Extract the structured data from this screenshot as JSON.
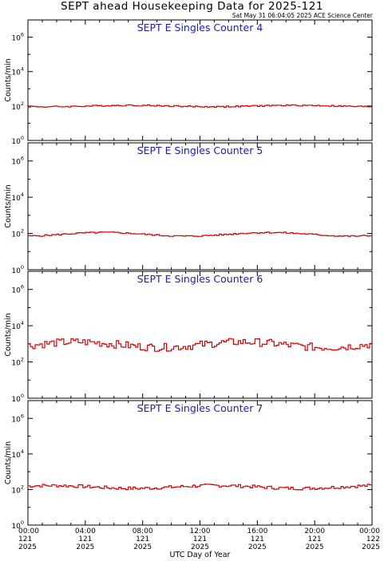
{
  "header": {
    "title": "SEPT ahead Housekeeping Data for 2025-121",
    "timestamp": "Sat May 31 06:04:05 2025 ACE Science Center"
  },
  "colors": {
    "panel_title": "#1c1cb4",
    "data_line": "#d40000",
    "axes": "#000000"
  },
  "chart_data": [
    {
      "type": "line",
      "title": "SEPT E Singles Counter 4",
      "ylabel": "Counts/min",
      "yscale": "log",
      "ylim": [
        1,
        10000000
      ],
      "xlim": [
        0,
        24
      ],
      "xunit": "hours (UTC), 2025-121",
      "series": [
        {
          "x": [
            0,
            24
          ],
          "base": 100,
          "amplitude_log": 0.04,
          "noise_log": 0.04,
          "seed": 4
        }
      ]
    },
    {
      "type": "line",
      "title": "SEPT E Singles Counter 5",
      "ylabel": "Counts/min",
      "yscale": "log",
      "ylim": [
        1,
        10000000
      ],
      "xlim": [
        0,
        24
      ],
      "xunit": "hours (UTC), 2025-121",
      "series": [
        {
          "x": [
            0,
            24
          ],
          "base": 90,
          "amplitude_log": 0.1,
          "noise_log": 0.04,
          "seed": 5
        }
      ]
    },
    {
      "type": "line",
      "title": "SEPT E Singles Counter 6",
      "ylabel": "Counts/min",
      "yscale": "log",
      "ylim": [
        1,
        10000000
      ],
      "xlim": [
        0,
        24
      ],
      "xunit": "hours (UTC), 2025-121",
      "series": [
        {
          "x": [
            0,
            24
          ],
          "base": 900,
          "amplitude_log": 0.15,
          "noise_log": 0.22,
          "seed": 6
        }
      ]
    },
    {
      "type": "line",
      "title": "SEPT E Singles Counter 7",
      "ylabel": "Counts/min",
      "yscale": "log",
      "ylim": [
        1,
        10000000
      ],
      "xlim": [
        0,
        24
      ],
      "xunit": "hours (UTC), 2025-121",
      "series": [
        {
          "x": [
            0,
            24
          ],
          "base": 140,
          "amplitude_log": 0.08,
          "noise_log": 0.09,
          "seed": 7
        }
      ]
    }
  ],
  "axes": {
    "y_ticks": [
      {
        "base": "10",
        "exp": "0"
      },
      {
        "base": "10",
        "exp": "2"
      },
      {
        "base": "10",
        "exp": "4"
      },
      {
        "base": "10",
        "exp": "6"
      }
    ],
    "x_ticks": [
      {
        "time": "00:00",
        "day": "121",
        "year": "2025"
      },
      {
        "time": "04:00",
        "day": "121",
        "year": "2025"
      },
      {
        "time": "08:00",
        "day": "121",
        "year": "2025"
      },
      {
        "time": "12:00",
        "day": "121",
        "year": "2025"
      },
      {
        "time": "16:00",
        "day": "121",
        "year": "2025"
      },
      {
        "time": "20:00",
        "day": "121",
        "year": "2025"
      },
      {
        "time": "00:00",
        "day": "122",
        "year": "2025"
      }
    ],
    "xlabel": "UTC Day of Year"
  }
}
